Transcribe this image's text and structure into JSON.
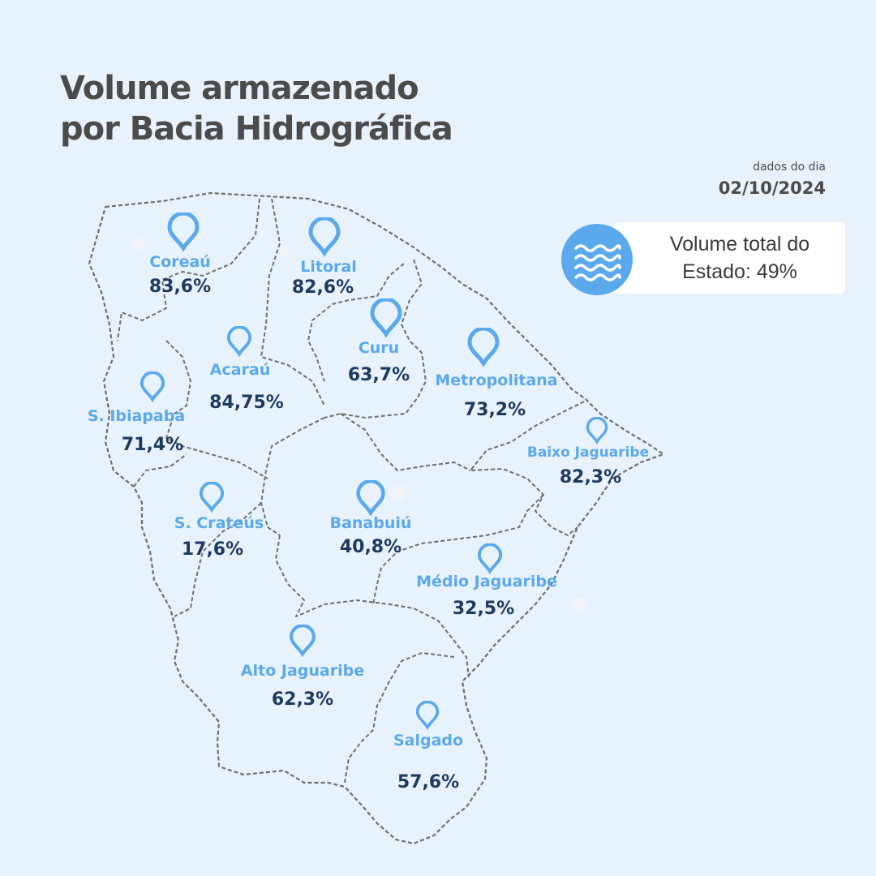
{
  "title": {
    "line1": "Volume armazenado",
    "line2": "por Bacia Hidrográfica"
  },
  "date": {
    "caption": "dados do dia",
    "value": "02/10/2024"
  },
  "total": {
    "line1": "Volume total do",
    "line2": "Estado: 49%",
    "icon": "water-waves-icon"
  },
  "colors": {
    "background": "#e8f2fc",
    "accent": "#5aa9ec",
    "value_text": "#1f3a5f",
    "title_text": "#4b4b4b"
  },
  "basins": [
    {
      "name": "Coreaú",
      "value": "83,6%"
    },
    {
      "name": "Litoral",
      "value": "82,6%"
    },
    {
      "name": "Curu",
      "value": "63,7%"
    },
    {
      "name": "Acaraú",
      "value": "84,75%"
    },
    {
      "name": "Metropolitana",
      "value": "73,2%"
    },
    {
      "name": "S. Ibiapaba",
      "value": "71,4%"
    },
    {
      "name": "Baixo Jaguaribe",
      "value": "82,3%"
    },
    {
      "name": "S. Crateús",
      "value": "17,6%"
    },
    {
      "name": "Banabuiú",
      "value": "40,8%"
    },
    {
      "name": "Médio Jaguaribe",
      "value": "32,5%"
    },
    {
      "name": "Alto Jaguaribe",
      "value": "62,3%"
    },
    {
      "name": "Salgado",
      "value": "57,6%"
    }
  ]
}
